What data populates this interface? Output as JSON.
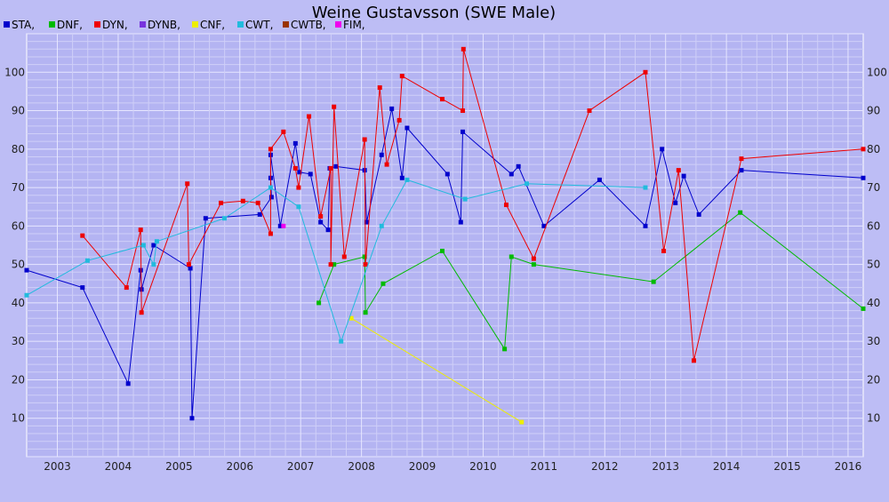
{
  "chart_data": {
    "type": "line",
    "title": "Weine Gustavsson (SWE Male)",
    "xlabel": "",
    "ylabel": "",
    "x_type": "date",
    "xlim": [
      "2002-07-01",
      "2016-04-01"
    ],
    "ylim": [
      0,
      110
    ],
    "x_ticks": [
      "2003",
      "2004",
      "2005",
      "2006",
      "2007",
      "2008",
      "2009",
      "2010",
      "2011",
      "2012",
      "2013",
      "2014",
      "2015",
      "2016"
    ],
    "y_ticks": [
      10,
      20,
      30,
      40,
      50,
      60,
      70,
      80,
      90,
      100
    ],
    "grid": true,
    "legend_position": "top-left",
    "series": [
      {
        "name": "STA",
        "color": "#0000cc",
        "points": [
          [
            "2002-07-01",
            48.5
          ],
          [
            "2003-06-01",
            44
          ],
          [
            "2004-03-01",
            19
          ],
          [
            "2004-05-15",
            48.5
          ],
          [
            "2004-05-20",
            43.5
          ],
          [
            "2004-08-01",
            55
          ],
          [
            "2005-03-10",
            49
          ],
          [
            "2005-03-20",
            10
          ],
          [
            "2005-06-10",
            62
          ],
          [
            "2006-05-01",
            63
          ],
          [
            "2006-07-10",
            67.5
          ],
          [
            "2006-07-05",
            72.5
          ],
          [
            "2006-07-05",
            78.5
          ],
          [
            "2006-09-01",
            60
          ],
          [
            "2006-12-01",
            81.5
          ],
          [
            "2006-12-25",
            74
          ],
          [
            "2007-03-01",
            73.5
          ],
          [
            "2007-05-01",
            61
          ],
          [
            "2007-06-15",
            59
          ],
          [
            "2007-06-25",
            75
          ],
          [
            "2007-08-01",
            75.5
          ],
          [
            "2008-01-20",
            74.5
          ],
          [
            "2008-02-01",
            61
          ],
          [
            "2008-05-01",
            78.5
          ],
          [
            "2008-07-01",
            90.5
          ],
          [
            "2008-09-01",
            72.5
          ],
          [
            "2008-10-01",
            85.5
          ],
          [
            "2009-06-01",
            73.5
          ],
          [
            "2009-08-20",
            61
          ],
          [
            "2009-09-01",
            84.5
          ],
          [
            "2010-06-20",
            73.5
          ],
          [
            "2010-08-01",
            75.5
          ],
          [
            "2011-01-01",
            60
          ],
          [
            "2011-12-01",
            72
          ],
          [
            "2012-09-01",
            60
          ],
          [
            "2012-12-10",
            80
          ],
          [
            "2013-03-01",
            66
          ],
          [
            "2013-04-20",
            73
          ],
          [
            "2013-07-20",
            63
          ],
          [
            "2014-04-01",
            74.5
          ],
          [
            "2016-04-01",
            72.5
          ]
        ]
      },
      {
        "name": "DNF",
        "color": "#00bb00",
        "points": [
          [
            "2007-04-20",
            40
          ],
          [
            "2007-07-20",
            50
          ],
          [
            "2008-01-20",
            52
          ],
          [
            "2008-01-25",
            37.5
          ],
          [
            "2008-05-10",
            45
          ],
          [
            "2009-05-01",
            53.5
          ],
          [
            "2010-05-10",
            28
          ],
          [
            "2010-06-20",
            52
          ],
          [
            "2010-11-01",
            50
          ],
          [
            "2012-10-20",
            45.5
          ],
          [
            "2014-03-25",
            63.5
          ],
          [
            "2016-04-01",
            38.5
          ]
        ]
      },
      {
        "name": "DYN",
        "color": "#ee0000",
        "points": [
          [
            "2003-06-01",
            57.5
          ],
          [
            "2004-02-20",
            44
          ],
          [
            "2004-05-15",
            59
          ],
          [
            "2004-05-20",
            37.5
          ],
          [
            "2005-02-20",
            71
          ],
          [
            "2005-03-01",
            50
          ],
          [
            "2005-09-10",
            66
          ],
          [
            "2006-01-20",
            66.5
          ],
          [
            "2006-04-20",
            66
          ],
          [
            "2006-07-05",
            58
          ],
          [
            "2006-07-05",
            80
          ],
          [
            "2006-09-20",
            84.5
          ],
          [
            "2006-12-01",
            75
          ],
          [
            "2006-12-20",
            70
          ],
          [
            "2007-02-20",
            88.5
          ],
          [
            "2007-05-01",
            62.5
          ],
          [
            "2007-07-01",
            75
          ],
          [
            "2007-07-01",
            50
          ],
          [
            "2007-07-20",
            91
          ],
          [
            "2007-09-20",
            52
          ],
          [
            "2008-01-20",
            82.5
          ],
          [
            "2008-01-25",
            50
          ],
          [
            "2008-04-20",
            96
          ],
          [
            "2008-06-01",
            76
          ],
          [
            "2008-08-15",
            87.5
          ],
          [
            "2008-09-01",
            99
          ],
          [
            "2009-05-01",
            93
          ],
          [
            "2009-09-01",
            90
          ],
          [
            "2009-09-05",
            106
          ],
          [
            "2010-05-20",
            65.5
          ],
          [
            "2010-11-01",
            51.5
          ],
          [
            "2011-10-01",
            90
          ],
          [
            "2012-09-01",
            100
          ],
          [
            "2012-12-20",
            53.5
          ],
          [
            "2013-03-20",
            74.5
          ],
          [
            "2013-06-20",
            25
          ],
          [
            "2014-04-01",
            77.5
          ],
          [
            "2016-04-01",
            80
          ]
        ]
      },
      {
        "name": "DYNB",
        "color": "#7733dd",
        "points": []
      },
      {
        "name": "CNF",
        "color": "#eeee00",
        "points": [
          [
            "2007-11-01",
            36
          ],
          [
            "2010-08-20",
            9
          ]
        ]
      },
      {
        "name": "CWT",
        "color": "#22bbdd",
        "points": [
          [
            "2002-07-01",
            42
          ],
          [
            "2003-07-01",
            51
          ],
          [
            "2004-06-01",
            55
          ],
          [
            "2004-08-01",
            50
          ],
          [
            "2004-08-20",
            56
          ],
          [
            "2005-10-01",
            62
          ],
          [
            "2006-07-05",
            70
          ],
          [
            "2006-12-20",
            65
          ],
          [
            "2007-09-01",
            30
          ],
          [
            "2008-05-01",
            60
          ],
          [
            "2008-10-01",
            72
          ],
          [
            "2009-09-15",
            67
          ],
          [
            "2010-09-20",
            71
          ],
          [
            "2012-09-01",
            70
          ]
        ]
      },
      {
        "name": "CWTB",
        "color": "#993300",
        "points": []
      },
      {
        "name": "FIM",
        "color": "#ee00ee",
        "points": [
          [
            "2006-09-20",
            60
          ]
        ]
      }
    ]
  }
}
